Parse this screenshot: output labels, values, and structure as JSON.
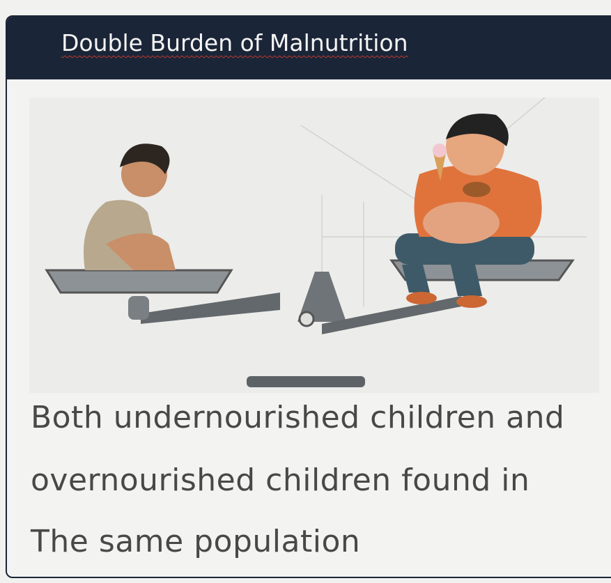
{
  "header": {
    "title": "Double Burden of Malnutrition"
  },
  "body": {
    "lines": [
      "Both undernourished children and",
      "overnourished children found in",
      "The same population"
    ]
  }
}
